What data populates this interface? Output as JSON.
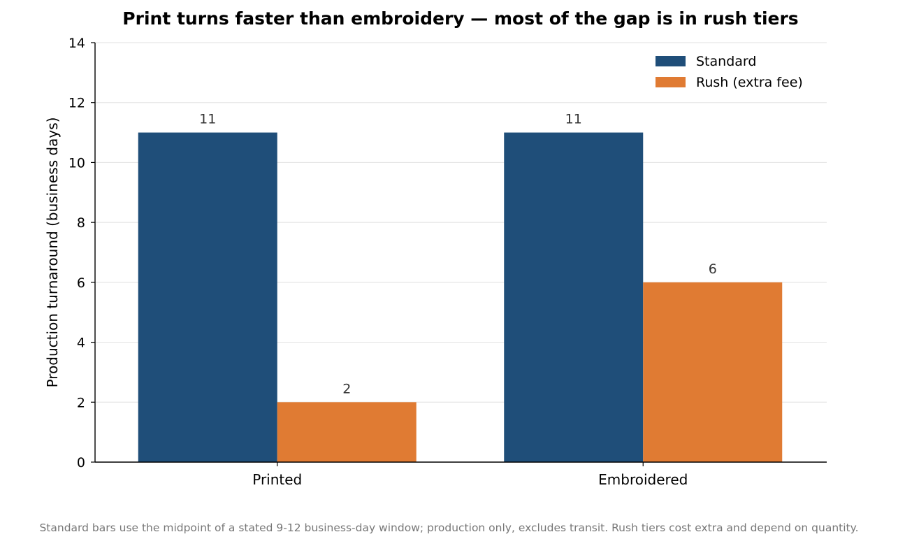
{
  "chart_data": {
    "type": "bar",
    "title": "Print turns faster than embroidery — most of the gap is in rush tiers",
    "xlabel": "",
    "ylabel": "Production turnaround (business days)",
    "categories": [
      "Printed",
      "Embroidered"
    ],
    "series": [
      {
        "name": "Standard",
        "values": [
          11,
          11
        ],
        "color": "#1f4e79"
      },
      {
        "name": "Rush (extra fee)",
        "values": [
          2,
          6
        ],
        "color": "#e07b33"
      }
    ],
    "ylim": [
      0,
      14
    ],
    "yticks": [
      0,
      2,
      4,
      6,
      8,
      10,
      12,
      14
    ],
    "grid": true,
    "legend_position": "top-right",
    "data_labels": true
  },
  "footnote": "Standard bars use the midpoint of a stated 9-12 business-day window; production only, excludes transit. Rush tiers cost extra and depend on quantity."
}
